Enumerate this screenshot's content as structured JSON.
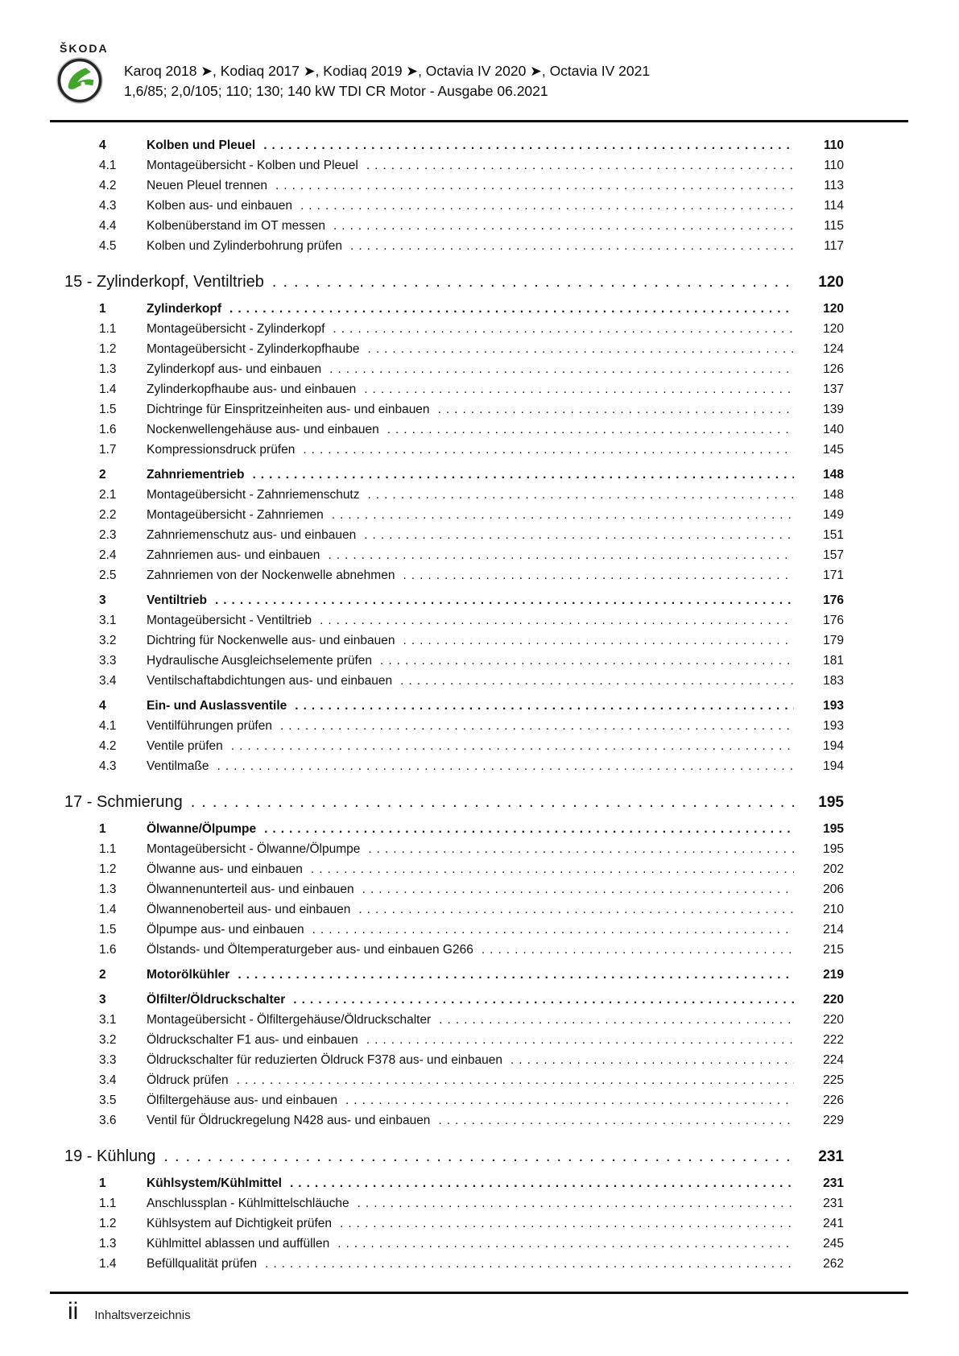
{
  "header": {
    "brand": "ŠKODA",
    "line1": "Karoq 2018 ➤, Kodiaq 2017 ➤, Kodiaq 2019 ➤, Octavia IV 2020 ➤, Octavia IV 2021",
    "line2": "1,6/85; 2,0/105; 110; 130; 140 kW TDI CR Motor - Ausgabe 06.2021"
  },
  "colors": {
    "brand_green": "#43a62c",
    "text": "#111111"
  },
  "toc": [
    {
      "type": "section",
      "num": "4",
      "title": "Kolben und Pleuel",
      "page": "110"
    },
    {
      "type": "sub",
      "num": "4.1",
      "title": "Montageübersicht - Kolben und Pleuel",
      "page": "110"
    },
    {
      "type": "sub",
      "num": "4.2",
      "title": "Neuen Pleuel trennen",
      "page": "113"
    },
    {
      "type": "sub",
      "num": "4.3",
      "title": "Kolben aus- und einbauen",
      "page": "114"
    },
    {
      "type": "sub",
      "num": "4.4",
      "title": "Kolbenüberstand im OT messen",
      "page": "115"
    },
    {
      "type": "sub",
      "num": "4.5",
      "title": "Kolben und Zylinderbohrung prüfen",
      "page": "117"
    },
    {
      "type": "chapter",
      "num": "15",
      "title": "Zylinderkopf, Ventiltrieb",
      "page": "120"
    },
    {
      "type": "section",
      "num": "1",
      "title": "Zylinderkopf",
      "page": "120"
    },
    {
      "type": "sub",
      "num": "1.1",
      "title": "Montageübersicht - Zylinderkopf",
      "page": "120"
    },
    {
      "type": "sub",
      "num": "1.2",
      "title": "Montageübersicht - Zylinderkopfhaube",
      "page": "124"
    },
    {
      "type": "sub",
      "num": "1.3",
      "title": "Zylinderkopf aus- und einbauen",
      "page": "126"
    },
    {
      "type": "sub",
      "num": "1.4",
      "title": "Zylinderkopfhaube aus- und einbauen",
      "page": "137"
    },
    {
      "type": "sub",
      "num": "1.5",
      "title": "Dichtringe für Einspritzeinheiten aus- und einbauen",
      "page": "139"
    },
    {
      "type": "sub",
      "num": "1.6",
      "title": "Nockenwellengehäuse aus- und einbauen",
      "page": "140"
    },
    {
      "type": "sub",
      "num": "1.7",
      "title": "Kompressionsdruck prüfen",
      "page": "145"
    },
    {
      "type": "section",
      "num": "2",
      "title": "Zahnriementrieb",
      "page": "148"
    },
    {
      "type": "sub",
      "num": "2.1",
      "title": "Montageübersicht - Zahnriemenschutz",
      "page": "148"
    },
    {
      "type": "sub",
      "num": "2.2",
      "title": "Montageübersicht - Zahnriemen",
      "page": "149"
    },
    {
      "type": "sub",
      "num": "2.3",
      "title": "Zahnriemenschutz aus- und einbauen",
      "page": "151"
    },
    {
      "type": "sub",
      "num": "2.4",
      "title": "Zahnriemen aus- und einbauen",
      "page": "157"
    },
    {
      "type": "sub",
      "num": "2.5",
      "title": "Zahnriemen von der Nockenwelle abnehmen",
      "page": "171"
    },
    {
      "type": "section",
      "num": "3",
      "title": "Ventiltrieb",
      "page": "176"
    },
    {
      "type": "sub",
      "num": "3.1",
      "title": "Montageübersicht - Ventiltrieb",
      "page": "176"
    },
    {
      "type": "sub",
      "num": "3.2",
      "title": "Dichtring für Nockenwelle aus- und einbauen",
      "page": "179"
    },
    {
      "type": "sub",
      "num": "3.3",
      "title": "Hydraulische Ausgleichselemente prüfen",
      "page": "181"
    },
    {
      "type": "sub",
      "num": "3.4",
      "title": "Ventilschaftabdichtungen aus- und einbauen",
      "page": "183"
    },
    {
      "type": "section",
      "num": "4",
      "title": "Ein- und Auslassventile",
      "page": "193"
    },
    {
      "type": "sub",
      "num": "4.1",
      "title": "Ventilführungen prüfen",
      "page": "193"
    },
    {
      "type": "sub",
      "num": "4.2",
      "title": "Ventile prüfen",
      "page": "194"
    },
    {
      "type": "sub",
      "num": "4.3",
      "title": "Ventilmaße",
      "page": "194"
    },
    {
      "type": "chapter",
      "num": "17",
      "title": "Schmierung",
      "page": "195"
    },
    {
      "type": "section",
      "num": "1",
      "title": "Ölwanne/Ölpumpe",
      "page": "195"
    },
    {
      "type": "sub",
      "num": "1.1",
      "title": "Montageübersicht - Ölwanne/Ölpumpe",
      "page": "195"
    },
    {
      "type": "sub",
      "num": "1.2",
      "title": "Ölwanne aus- und einbauen",
      "page": "202"
    },
    {
      "type": "sub",
      "num": "1.3",
      "title": "Ölwannenunterteil aus- und einbauen",
      "page": "206"
    },
    {
      "type": "sub",
      "num": "1.4",
      "title": "Ölwannenoberteil aus- und einbauen",
      "page": "210"
    },
    {
      "type": "sub",
      "num": "1.5",
      "title": "Ölpumpe aus- und einbauen",
      "page": "214"
    },
    {
      "type": "sub",
      "num": "1.6",
      "title": "Ölstands- und Öltemperaturgeber aus- und einbauen G266",
      "page": "215"
    },
    {
      "type": "section",
      "num": "2",
      "title": "Motorölkühler",
      "page": "219"
    },
    {
      "type": "section",
      "num": "3",
      "title": "Ölfilter/Öldruckschalter",
      "page": "220"
    },
    {
      "type": "sub",
      "num": "3.1",
      "title": "Montageübersicht - Ölfiltergehäuse/Öldruckschalter",
      "page": "220"
    },
    {
      "type": "sub",
      "num": "3.2",
      "title": "Öldruckschalter F1 aus- und einbauen",
      "page": "222"
    },
    {
      "type": "sub",
      "num": "3.3",
      "title": "Öldruckschalter für reduzierten Öldruck F378 aus- und einbauen",
      "page": "224"
    },
    {
      "type": "sub",
      "num": "3.4",
      "title": "Öldruck prüfen",
      "page": "225"
    },
    {
      "type": "sub",
      "num": "3.5",
      "title": "Ölfiltergehäuse aus- und einbauen",
      "page": "226"
    },
    {
      "type": "sub",
      "num": "3.6",
      "title": "Ventil für Öldruckregelung N428 aus- und einbauen",
      "page": "229"
    },
    {
      "type": "chapter",
      "num": "19",
      "title": "Kühlung",
      "page": "231"
    },
    {
      "type": "section",
      "num": "1",
      "title": "Kühlsystem/Kühlmittel",
      "page": "231"
    },
    {
      "type": "sub",
      "num": "1.1",
      "title": "Anschlussplan - Kühlmittelschläuche",
      "page": "231"
    },
    {
      "type": "sub",
      "num": "1.2",
      "title": "Kühlsystem auf Dichtigkeit prüfen",
      "page": "241"
    },
    {
      "type": "sub",
      "num": "1.3",
      "title": "Kühlmittel ablassen und auffüllen",
      "page": "245"
    },
    {
      "type": "sub",
      "num": "1.4",
      "title": "Befüllqualität prüfen",
      "page": "262"
    }
  ],
  "footer": {
    "page_label": "ii",
    "text": "Inhaltsverzeichnis"
  }
}
